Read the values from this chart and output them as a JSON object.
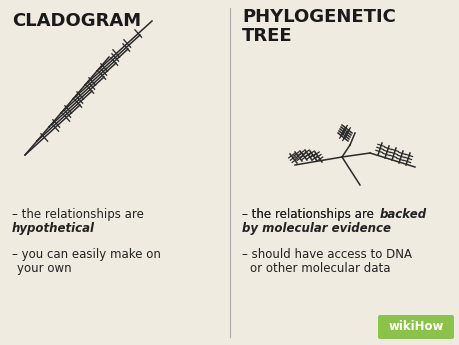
{
  "bg_color": "#f0ebe0",
  "title_color": "#1a1a1a",
  "text_color": "#222222",
  "divider_color": "#aaaaaa",
  "line_color": "#2a2a2a",
  "col1_title": "CLADOGRAM",
  "col2_title": "PHYLOGENETIC\nTREE",
  "wikihow_text": "wikiHow",
  "wikihow_bg": "#8bc34a",
  "fig_width": 4.6,
  "fig_height": 3.45,
  "dpi": 100
}
